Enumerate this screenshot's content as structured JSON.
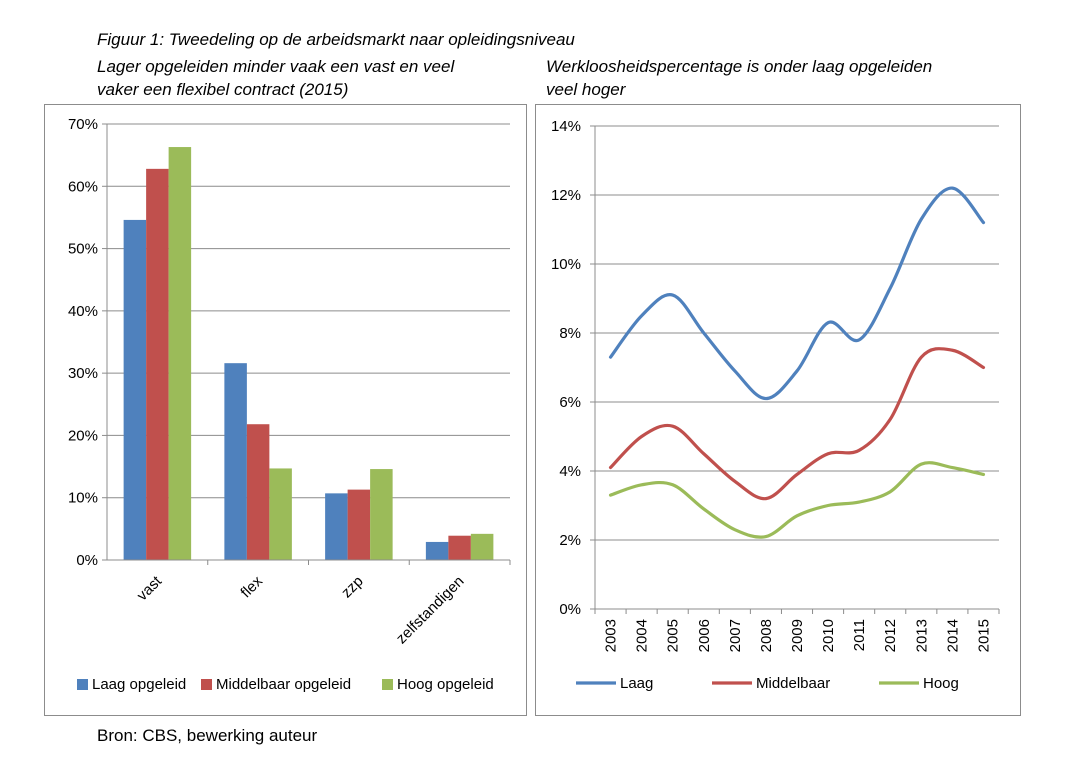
{
  "figure": {
    "title": "Figuur 1:  Tweedeling op de arbeidsmarkt naar opleidingsniveau",
    "left_subtitle_1": "Lager opgeleiden minder vaak een vast en veel",
    "left_subtitle_2": "vaker een flexibel contract  (2015)",
    "right_subtitle_1": "Werkloosheidspercentage is onder laag opgeleiden",
    "right_subtitle_2": "veel hoger",
    "source": "Bron: CBS, bewerking auteur"
  },
  "chart_data": [
    {
      "type": "bar",
      "title": "Lager opgeleiden minder vaak een vast en veel vaker een flexibel contract  (2015)",
      "categories": [
        "vast",
        "flex",
        "zzp",
        "zelfstandigen"
      ],
      "series": [
        {
          "name": "Laag opgeleid",
          "color": "#4f81bd",
          "values": [
            54.6,
            31.6,
            10.7,
            2.9
          ]
        },
        {
          "name": "Middelbaar opgeleid",
          "color": "#c0504d",
          "values": [
            62.8,
            21.8,
            11.3,
            3.9
          ]
        },
        {
          "name": "Hoog opgeleid",
          "color": "#9bbb59",
          "values": [
            66.3,
            14.7,
            14.6,
            4.2
          ]
        }
      ],
      "ylim": [
        0,
        70
      ],
      "yticks": [
        "0%",
        "10%",
        "20%",
        "30%",
        "40%",
        "50%",
        "60%",
        "70%"
      ],
      "grid": true,
      "legend": "bottom"
    },
    {
      "type": "line",
      "title": "Werkloosheidspercentage is onder laag opgeleiden veel hoger",
      "x": [
        "2003",
        "2004",
        "2005",
        "2006",
        "2007",
        "2008",
        "2009",
        "2010",
        "2011",
        "2012",
        "2013",
        "2014",
        "2015"
      ],
      "series": [
        {
          "name": "Laag",
          "color": "#4f81bd",
          "values": [
            7.3,
            8.5,
            9.1,
            8.0,
            6.9,
            6.1,
            6.9,
            8.3,
            7.8,
            9.3,
            11.3,
            12.2,
            11.2
          ]
        },
        {
          "name": "Middelbaar",
          "color": "#c0504d",
          "values": [
            4.1,
            5.0,
            5.3,
            4.5,
            3.7,
            3.2,
            3.9,
            4.5,
            4.6,
            5.5,
            7.3,
            7.5,
            7.0
          ]
        },
        {
          "name": "Hoog",
          "color": "#9bbb59",
          "values": [
            3.3,
            3.6,
            3.6,
            2.9,
            2.3,
            2.1,
            2.7,
            3.0,
            3.1,
            3.4,
            4.2,
            4.1,
            3.9
          ]
        }
      ],
      "ylim": [
        0,
        14
      ],
      "yticks": [
        "0%",
        "2%",
        "4%",
        "6%",
        "8%",
        "10%",
        "12%",
        "14%"
      ],
      "grid": true,
      "legend": "bottom"
    }
  ]
}
